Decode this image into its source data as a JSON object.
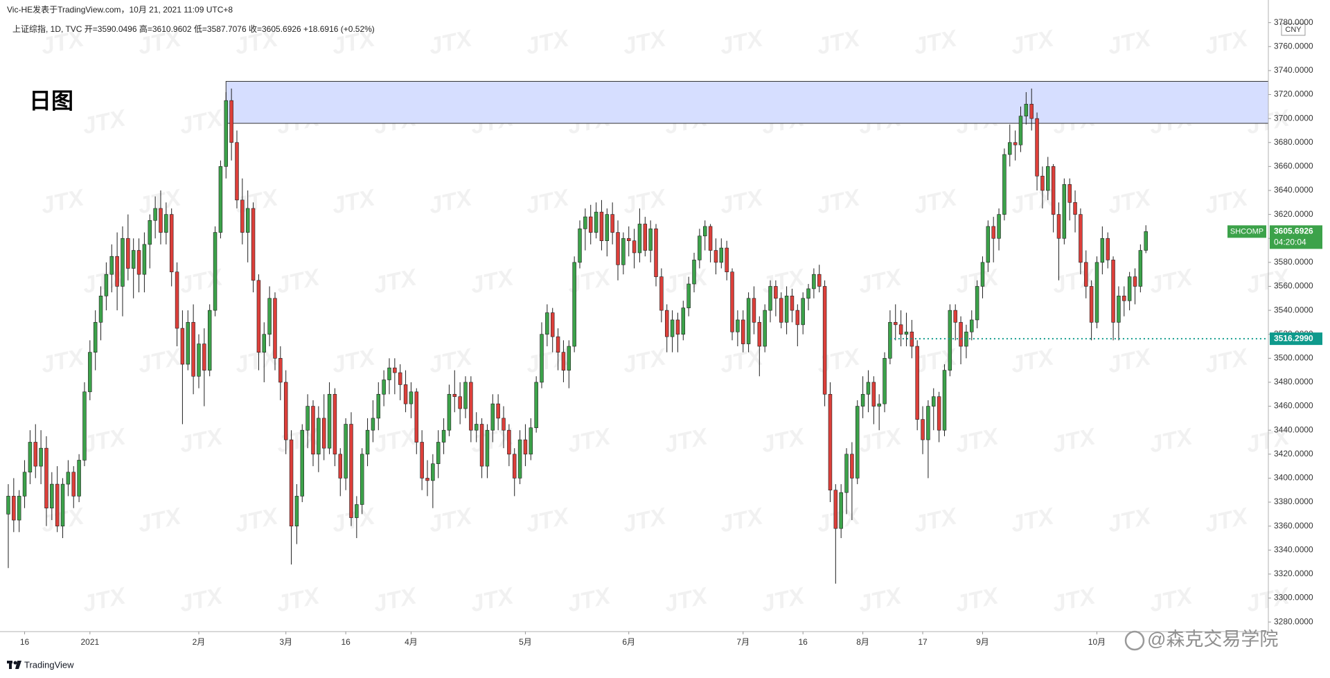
{
  "header": {
    "publisher": "Vic-HE发表于TradingView.com，10月 21, 2021 11:09 UTC+8",
    "legend": "上证综指, 1D, TVC  开=3590.0496  高=3610.9602  低=3587.7076  收=3605.6926  +18.6916 (+0.52%)"
  },
  "chart_data": {
    "type": "candlestick",
    "title": "日图",
    "symbol": "SHCOMP",
    "last_price_label": "3605.6926",
    "countdown": "04:20:04",
    "currency": "CNY",
    "up_color": "#3ca24a",
    "down_color": "#dc3f3a",
    "wick_color": "#1e1e1e",
    "xlim": [
      -0.25,
      231.5
    ],
    "ylim": [
      3272,
      3785
    ],
    "xticks": [
      {
        "value": 3,
        "label": "16"
      },
      {
        "value": 15,
        "label": "2021"
      },
      {
        "value": 35,
        "label": "2月"
      },
      {
        "value": 51,
        "label": "3月"
      },
      {
        "value": 62,
        "label": "16"
      },
      {
        "value": 74,
        "label": "4月"
      },
      {
        "value": 95,
        "label": "5月"
      },
      {
        "value": 114,
        "label": "6月"
      },
      {
        "value": 135,
        "label": "7月"
      },
      {
        "value": 146,
        "label": "16"
      },
      {
        "value": 157,
        "label": "8月"
      },
      {
        "value": 168,
        "label": "17"
      },
      {
        "value": 179,
        "label": "9月"
      },
      {
        "value": 200,
        "label": "10月"
      }
    ],
    "yticks": [
      {
        "value": 3280,
        "label": "3280.0000"
      },
      {
        "value": 3300,
        "label": "3300.0000"
      },
      {
        "value": 3320,
        "label": "3320.0000"
      },
      {
        "value": 3340,
        "label": "3340.0000"
      },
      {
        "value": 3360,
        "label": "3360.0000"
      },
      {
        "value": 3380,
        "label": "3380.0000"
      },
      {
        "value": 3400,
        "label": "3400.0000"
      },
      {
        "value": 3420,
        "label": "3420.0000"
      },
      {
        "value": 3440,
        "label": "3440.0000"
      },
      {
        "value": 3460,
        "label": "3460.0000"
      },
      {
        "value": 3480,
        "label": "3480.0000"
      },
      {
        "value": 3500,
        "label": "3500.0000"
      },
      {
        "value": 3520,
        "label": "3520.0000"
      },
      {
        "value": 3540,
        "label": "3540.0000"
      },
      {
        "value": 3560,
        "label": "3560.0000"
      },
      {
        "value": 3580,
        "label": "3580.0000"
      },
      {
        "value": 3600,
        "label": "3600.0000"
      },
      {
        "value": 3620,
        "label": "3620.0000"
      },
      {
        "value": 3640,
        "label": "3640.0000"
      },
      {
        "value": 3660,
        "label": "3660.0000"
      },
      {
        "value": 3680,
        "label": "3680.0000"
      },
      {
        "value": 3700,
        "label": "3700.0000"
      },
      {
        "value": 3720,
        "label": "3720.0000"
      },
      {
        "value": 3740,
        "label": "3740.0000"
      },
      {
        "value": 3760,
        "label": "3760.0000"
      },
      {
        "value": 3780,
        "label": "3780.0000"
      }
    ],
    "zone": {
      "x_start": 40,
      "low": 3696,
      "high": 3731,
      "color": "#d6deff"
    },
    "hline": {
      "value": 3516.299,
      "label": "3516.2990",
      "x_start": 162,
      "color": "#0f9a8c"
    },
    "ohlc": [
      [
        3370,
        3395,
        3325,
        3385
      ],
      [
        3385,
        3400,
        3355,
        3365
      ],
      [
        3365,
        3390,
        3355,
        3385
      ],
      [
        3385,
        3415,
        3375,
        3405
      ],
      [
        3405,
        3440,
        3395,
        3430
      ],
      [
        3430,
        3445,
        3400,
        3410
      ],
      [
        3410,
        3440,
        3395,
        3425
      ],
      [
        3425,
        3435,
        3360,
        3375
      ],
      [
        3375,
        3405,
        3365,
        3395
      ],
      [
        3395,
        3410,
        3355,
        3360
      ],
      [
        3360,
        3400,
        3350,
        3395
      ],
      [
        3395,
        3415,
        3385,
        3405
      ],
      [
        3405,
        3410,
        3375,
        3385
      ],
      [
        3385,
        3420,
        3380,
        3415
      ],
      [
        3415,
        3480,
        3410,
        3472
      ],
      [
        3472,
        3515,
        3465,
        3505
      ],
      [
        3505,
        3540,
        3490,
        3530
      ],
      [
        3530,
        3560,
        3515,
        3552
      ],
      [
        3552,
        3580,
        3540,
        3570
      ],
      [
        3570,
        3595,
        3555,
        3585
      ],
      [
        3585,
        3605,
        3540,
        3560
      ],
      [
        3560,
        3610,
        3535,
        3600
      ],
      [
        3600,
        3620,
        3565,
        3575
      ],
      [
        3575,
        3600,
        3550,
        3590
      ],
      [
        3590,
        3600,
        3555,
        3570
      ],
      [
        3570,
        3605,
        3555,
        3595
      ],
      [
        3595,
        3620,
        3575,
        3615
      ],
      [
        3615,
        3635,
        3600,
        3625
      ],
      [
        3625,
        3640,
        3595,
        3605
      ],
      [
        3605,
        3630,
        3595,
        3620
      ],
      [
        3620,
        3625,
        3560,
        3572
      ],
      [
        3572,
        3580,
        3510,
        3525
      ],
      [
        3525,
        3540,
        3445,
        3495
      ],
      [
        3495,
        3540,
        3490,
        3530
      ],
      [
        3530,
        3545,
        3470,
        3485
      ],
      [
        3485,
        3520,
        3475,
        3512
      ],
      [
        3512,
        3525,
        3460,
        3490
      ],
      [
        3490,
        3545,
        3485,
        3540
      ],
      [
        3540,
        3610,
        3535,
        3605
      ],
      [
        3605,
        3665,
        3600,
        3660
      ],
      [
        3660,
        3722,
        3650,
        3715
      ],
      [
        3715,
        3725,
        3665,
        3680
      ],
      [
        3680,
        3690,
        3625,
        3632
      ],
      [
        3632,
        3650,
        3595,
        3605
      ],
      [
        3605,
        3640,
        3580,
        3625
      ],
      [
        3625,
        3630,
        3555,
        3565
      ],
      [
        3565,
        3570,
        3490,
        3505
      ],
      [
        3505,
        3530,
        3480,
        3520
      ],
      [
        3520,
        3560,
        3510,
        3550
      ],
      [
        3550,
        3555,
        3490,
        3500
      ],
      [
        3500,
        3510,
        3465,
        3480
      ],
      [
        3480,
        3490,
        3420,
        3432
      ],
      [
        3432,
        3440,
        3328,
        3360
      ],
      [
        3360,
        3395,
        3345,
        3385
      ],
      [
        3385,
        3445,
        3380,
        3440
      ],
      [
        3440,
        3470,
        3425,
        3460
      ],
      [
        3460,
        3465,
        3410,
        3420
      ],
      [
        3420,
        3460,
        3405,
        3450
      ],
      [
        3450,
        3470,
        3415,
        3425
      ],
      [
        3425,
        3480,
        3420,
        3470
      ],
      [
        3470,
        3475,
        3410,
        3420
      ],
      [
        3420,
        3425,
        3385,
        3400
      ],
      [
        3400,
        3450,
        3390,
        3445
      ],
      [
        3445,
        3455,
        3360,
        3367
      ],
      [
        3367,
        3385,
        3350,
        3378
      ],
      [
        3378,
        3425,
        3370,
        3420
      ],
      [
        3420,
        3450,
        3410,
        3440
      ],
      [
        3440,
        3465,
        3430,
        3450
      ],
      [
        3450,
        3480,
        3440,
        3470
      ],
      [
        3470,
        3490,
        3460,
        3482
      ],
      [
        3482,
        3500,
        3470,
        3492
      ],
      [
        3492,
        3500,
        3470,
        3488
      ],
      [
        3488,
        3495,
        3465,
        3478
      ],
      [
        3478,
        3490,
        3455,
        3462
      ],
      [
        3462,
        3480,
        3450,
        3472
      ],
      [
        3472,
        3475,
        3420,
        3430
      ],
      [
        3430,
        3440,
        3390,
        3400
      ],
      [
        3400,
        3415,
        3385,
        3398
      ],
      [
        3398,
        3420,
        3375,
        3412
      ],
      [
        3412,
        3440,
        3400,
        3430
      ],
      [
        3430,
        3450,
        3420,
        3440
      ],
      [
        3440,
        3478,
        3435,
        3470
      ],
      [
        3470,
        3490,
        3455,
        3468
      ],
      [
        3468,
        3480,
        3445,
        3458
      ],
      [
        3458,
        3485,
        3450,
        3480
      ],
      [
        3480,
        3485,
        3430,
        3440
      ],
      [
        3440,
        3455,
        3430,
        3445
      ],
      [
        3445,
        3450,
        3400,
        3410
      ],
      [
        3410,
        3445,
        3400,
        3440
      ],
      [
        3440,
        3470,
        3430,
        3462
      ],
      [
        3462,
        3470,
        3440,
        3450
      ],
      [
        3450,
        3460,
        3425,
        3440
      ],
      [
        3440,
        3445,
        3410,
        3420
      ],
      [
        3420,
        3425,
        3385,
        3400
      ],
      [
        3400,
        3440,
        3395,
        3432
      ],
      [
        3432,
        3445,
        3410,
        3420
      ],
      [
        3420,
        3450,
        3415,
        3442
      ],
      [
        3442,
        3485,
        3438,
        3480
      ],
      [
        3480,
        3530,
        3475,
        3520
      ],
      [
        3520,
        3545,
        3510,
        3538
      ],
      [
        3538,
        3542,
        3505,
        3518
      ],
      [
        3518,
        3525,
        3490,
        3505
      ],
      [
        3505,
        3515,
        3480,
        3490
      ],
      [
        3490,
        3515,
        3475,
        3510
      ],
      [
        3510,
        3585,
        3505,
        3580
      ],
      [
        3580,
        3615,
        3575,
        3608
      ],
      [
        3608,
        3625,
        3590,
        3618
      ],
      [
        3618,
        3628,
        3595,
        3605
      ],
      [
        3605,
        3630,
        3600,
        3622
      ],
      [
        3622,
        3632,
        3590,
        3598
      ],
      [
        3598,
        3625,
        3585,
        3620
      ],
      [
        3620,
        3630,
        3595,
        3605
      ],
      [
        3605,
        3615,
        3565,
        3578
      ],
      [
        3578,
        3605,
        3570,
        3600
      ],
      [
        3600,
        3610,
        3585,
        3598
      ],
      [
        3598,
        3608,
        3575,
        3588
      ],
      [
        3588,
        3625,
        3580,
        3612
      ],
      [
        3612,
        3618,
        3585,
        3590
      ],
      [
        3590,
        3615,
        3580,
        3608
      ],
      [
        3608,
        3612,
        3560,
        3568
      ],
      [
        3568,
        3575,
        3530,
        3540
      ],
      [
        3540,
        3545,
        3505,
        3518
      ],
      [
        3518,
        3540,
        3505,
        3532
      ],
      [
        3532,
        3538,
        3505,
        3520
      ],
      [
        3520,
        3548,
        3515,
        3542
      ],
      [
        3542,
        3568,
        3535,
        3562
      ],
      [
        3562,
        3588,
        3555,
        3582
      ],
      [
        3582,
        3608,
        3575,
        3602
      ],
      [
        3602,
        3615,
        3590,
        3610
      ],
      [
        3610,
        3612,
        3580,
        3590
      ],
      [
        3590,
        3600,
        3570,
        3580
      ],
      [
        3580,
        3600,
        3575,
        3592
      ],
      [
        3592,
        3598,
        3565,
        3572
      ],
      [
        3572,
        3575,
        3515,
        3522
      ],
      [
        3522,
        3540,
        3510,
        3532
      ],
      [
        3532,
        3540,
        3505,
        3512
      ],
      [
        3512,
        3555,
        3505,
        3550
      ],
      [
        3550,
        3560,
        3520,
        3530
      ],
      [
        3530,
        3535,
        3485,
        3510
      ],
      [
        3510,
        3545,
        3505,
        3540
      ],
      [
        3540,
        3565,
        3530,
        3560
      ],
      [
        3560,
        3565,
        3535,
        3550
      ],
      [
        3550,
        3555,
        3525,
        3530
      ],
      [
        3530,
        3560,
        3520,
        3552
      ],
      [
        3552,
        3558,
        3530,
        3540
      ],
      [
        3540,
        3545,
        3510,
        3528
      ],
      [
        3528,
        3555,
        3520,
        3550
      ],
      [
        3550,
        3562,
        3540,
        3558
      ],
      [
        3558,
        3575,
        3550,
        3570
      ],
      [
        3570,
        3578,
        3555,
        3560
      ],
      [
        3560,
        3565,
        3460,
        3470
      ],
      [
        3470,
        3480,
        3380,
        3390
      ],
      [
        3390,
        3395,
        3312,
        3358
      ],
      [
        3358,
        3395,
        3350,
        3388
      ],
      [
        3388,
        3425,
        3370,
        3420
      ],
      [
        3420,
        3430,
        3365,
        3400
      ],
      [
        3400,
        3465,
        3395,
        3460
      ],
      [
        3460,
        3485,
        3450,
        3470
      ],
      [
        3470,
        3490,
        3455,
        3480
      ],
      [
        3480,
        3485,
        3445,
        3460
      ],
      [
        3460,
        3470,
        3440,
        3462
      ],
      [
        3462,
        3505,
        3455,
        3500
      ],
      [
        3500,
        3540,
        3495,
        3530
      ],
      [
        3530,
        3545,
        3515,
        3528
      ],
      [
        3528,
        3540,
        3510,
        3520
      ],
      [
        3520,
        3538,
        3510,
        3522
      ],
      [
        3522,
        3532,
        3500,
        3510
      ],
      [
        3510,
        3515,
        3440,
        3449
      ],
      [
        3449,
        3460,
        3420,
        3432
      ],
      [
        3432,
        3465,
        3400,
        3460
      ],
      [
        3460,
        3475,
        3440,
        3468
      ],
      [
        3468,
        3472,
        3430,
        3440
      ],
      [
        3440,
        3495,
        3435,
        3490
      ],
      [
        3490,
        3545,
        3485,
        3540
      ],
      [
        3540,
        3545,
        3515,
        3530
      ],
      [
        3530,
        3535,
        3495,
        3510
      ],
      [
        3510,
        3528,
        3500,
        3522
      ],
      [
        3522,
        3540,
        3515,
        3532
      ],
      [
        3532,
        3565,
        3525,
        3560
      ],
      [
        3560,
        3585,
        3550,
        3580
      ],
      [
        3580,
        3615,
        3572,
        3610
      ],
      [
        3610,
        3618,
        3580,
        3600
      ],
      [
        3600,
        3625,
        3590,
        3620
      ],
      [
        3620,
        3675,
        3615,
        3670
      ],
      [
        3670,
        3695,
        3660,
        3680
      ],
      [
        3680,
        3690,
        3665,
        3678
      ],
      [
        3678,
        3710,
        3672,
        3702
      ],
      [
        3702,
        3722,
        3695,
        3712
      ],
      [
        3712,
        3725,
        3690,
        3700
      ],
      [
        3700,
        3705,
        3640,
        3652
      ],
      [
        3652,
        3660,
        3625,
        3640
      ],
      [
        3640,
        3668,
        3632,
        3660
      ],
      [
        3660,
        3662,
        3605,
        3620
      ],
      [
        3620,
        3630,
        3565,
        3600
      ],
      [
        3600,
        3650,
        3595,
        3645
      ],
      [
        3645,
        3650,
        3615,
        3630
      ],
      [
        3630,
        3640,
        3605,
        3620
      ],
      [
        3620,
        3625,
        3570,
        3580
      ],
      [
        3580,
        3590,
        3550,
        3560
      ],
      [
        3560,
        3565,
        3515,
        3530
      ],
      [
        3530,
        3585,
        3525,
        3580
      ],
      [
        3580,
        3610,
        3570,
        3600
      ],
      [
        3600,
        3605,
        3575,
        3582
      ],
      [
        3582,
        3585,
        3515,
        3530
      ],
      [
        3530,
        3560,
        3515,
        3552
      ],
      [
        3552,
        3560,
        3535,
        3548
      ],
      [
        3548,
        3572,
        3540,
        3568
      ],
      [
        3568,
        3575,
        3545,
        3560
      ],
      [
        3560,
        3595,
        3555,
        3590
      ],
      [
        3590.0496,
        3610.9602,
        3587.7076,
        3605.6926
      ]
    ]
  },
  "footer": {
    "logo": "TradingView",
    "watermark": "@森克交易学院",
    "background_mark": "JTX"
  }
}
